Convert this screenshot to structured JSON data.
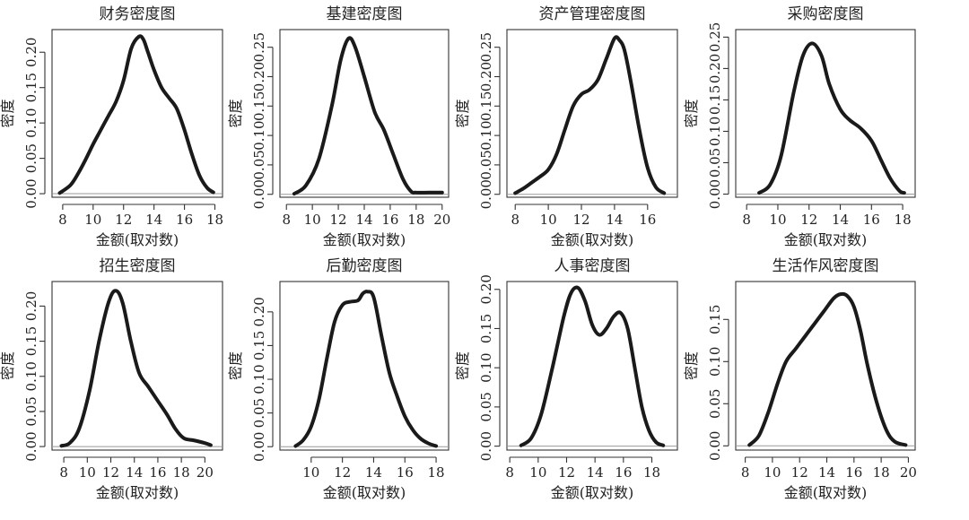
{
  "chart_data": [
    {
      "type": "line",
      "title": "财务密度图",
      "xlabel": "金额(取对数)",
      "ylabel": "密度",
      "xlim": [
        7.3,
        18.5
      ],
      "ylim": [
        -0.005,
        0.232
      ],
      "xticks": [
        8,
        10,
        12,
        14,
        16,
        18
      ],
      "yticks": [
        0.0,
        0.05,
        0.1,
        0.15,
        0.2
      ],
      "ytick_labels": [
        "0.00",
        "0.05",
        "0.10",
        "0.15",
        "0.20"
      ],
      "series": [
        {
          "x": [
            7.8,
            8.5,
            9.0,
            9.5,
            10.0,
            10.5,
            11.0,
            11.5,
            12.0,
            12.5,
            13.0,
            13.3,
            13.6,
            14.0,
            14.5,
            15.0,
            15.5,
            16.0,
            16.5,
            17.0,
            17.5,
            17.9
          ],
          "y": [
            0.001,
            0.012,
            0.028,
            0.048,
            0.07,
            0.09,
            0.11,
            0.13,
            0.16,
            0.205,
            0.222,
            0.218,
            0.2,
            0.175,
            0.15,
            0.135,
            0.12,
            0.09,
            0.055,
            0.025,
            0.008,
            0.002
          ]
        }
      ]
    },
    {
      "type": "line",
      "title": "基建密度图",
      "xlabel": "金额(取对数)",
      "ylabel": "密度",
      "xlim": [
        7.5,
        20.5
      ],
      "ylim": [
        -0.005,
        0.28
      ],
      "xticks": [
        8,
        10,
        12,
        14,
        16,
        18,
        20
      ],
      "yticks": [
        0.0,
        0.05,
        0.1,
        0.15,
        0.2,
        0.25
      ],
      "ytick_labels": [
        "0.00",
        "0.05",
        "0.10",
        "0.15",
        "0.20",
        "0.25"
      ],
      "series": [
        {
          "x": [
            8.6,
            9.5,
            10.5,
            11.5,
            12.2,
            12.8,
            13.3,
            14.0,
            14.8,
            15.5,
            16.2,
            17.0,
            17.6,
            18.0,
            19.0,
            20.0
          ],
          "y": [
            0.001,
            0.015,
            0.06,
            0.15,
            0.23,
            0.265,
            0.25,
            0.2,
            0.14,
            0.11,
            0.07,
            0.025,
            0.005,
            0.003,
            0.003,
            0.003
          ]
        }
      ]
    },
    {
      "type": "line",
      "title": "资产管理密度图",
      "xlabel": "金额(取对数)",
      "ylabel": "密度",
      "xlim": [
        7.5,
        17.8
      ],
      "ylim": [
        -0.005,
        0.28
      ],
      "xticks": [
        8,
        10,
        12,
        14,
        16
      ],
      "yticks": [
        0.0,
        0.05,
        0.1,
        0.15,
        0.2,
        0.25
      ],
      "ytick_labels": [
        "0.00",
        "0.05",
        "0.10",
        "0.15",
        "0.20",
        "0.25"
      ],
      "series": [
        {
          "x": [
            8.0,
            8.5,
            9.0,
            9.5,
            10.0,
            10.5,
            11.0,
            11.5,
            12.0,
            12.5,
            13.0,
            13.5,
            14.0,
            14.3,
            14.6,
            15.0,
            15.5,
            16.0,
            16.5,
            17.0
          ],
          "y": [
            0.002,
            0.01,
            0.02,
            0.03,
            0.042,
            0.068,
            0.11,
            0.15,
            0.17,
            0.178,
            0.195,
            0.23,
            0.265,
            0.262,
            0.245,
            0.19,
            0.11,
            0.045,
            0.012,
            0.002
          ]
        }
      ]
    },
    {
      "type": "line",
      "title": "采购密度图",
      "xlabel": "金额(取对数)",
      "ylabel": "密度",
      "xlim": [
        7.3,
        18.8
      ],
      "ylim": [
        -0.005,
        0.262
      ],
      "xticks": [
        8,
        10,
        12,
        14,
        16,
        18
      ],
      "yticks": [
        0.0,
        0.05,
        0.1,
        0.15,
        0.2,
        0.25
      ],
      "ytick_labels": [
        "0.00",
        "0.05",
        "0.10",
        "0.15",
        "0.20",
        "0.25"
      ],
      "series": [
        {
          "x": [
            8.8,
            9.5,
            10.2,
            11.0,
            11.6,
            12.2,
            12.8,
            13.3,
            14.0,
            14.6,
            15.3,
            16.0,
            16.6,
            17.2,
            17.8,
            18.1
          ],
          "y": [
            0.002,
            0.015,
            0.06,
            0.16,
            0.22,
            0.24,
            0.22,
            0.175,
            0.135,
            0.118,
            0.105,
            0.085,
            0.055,
            0.025,
            0.005,
            0.002
          ]
        }
      ]
    },
    {
      "type": "line",
      "title": "招生密度图",
      "xlabel": "金额(取对数)",
      "ylabel": "密度",
      "xlim": [
        7.0,
        21.5
      ],
      "ylim": [
        -0.005,
        0.235
      ],
      "xticks": [
        8,
        10,
        12,
        14,
        16,
        18,
        20
      ],
      "yticks": [
        0.0,
        0.05,
        0.1,
        0.15,
        0.2
      ],
      "ytick_labels": [
        "0.00",
        "0.05",
        "0.10",
        "0.15",
        "0.20"
      ],
      "series": [
        {
          "x": [
            7.8,
            8.5,
            9.3,
            10.2,
            11.0,
            11.8,
            12.4,
            13.0,
            13.7,
            14.4,
            15.2,
            16.0,
            16.8,
            17.5,
            18.2,
            19.0,
            20.0,
            20.5
          ],
          "y": [
            0.001,
            0.005,
            0.025,
            0.08,
            0.15,
            0.205,
            0.222,
            0.205,
            0.15,
            0.105,
            0.085,
            0.065,
            0.045,
            0.025,
            0.012,
            0.009,
            0.005,
            0.002
          ]
        }
      ]
    },
    {
      "type": "line",
      "title": "后勤密度图",
      "xlabel": "金额(取对数)",
      "ylabel": "密度",
      "xlim": [
        8.0,
        18.8
      ],
      "ylim": [
        -0.005,
        0.245
      ],
      "xticks": [
        10,
        12,
        14,
        16,
        18
      ],
      "yticks": [
        0.0,
        0.05,
        0.1,
        0.15,
        0.2
      ],
      "ytick_labels": [
        "0.00",
        "0.05",
        "0.10",
        "0.15",
        "0.20"
      ],
      "series": [
        {
          "x": [
            9.0,
            9.5,
            10.0,
            10.5,
            11.0,
            11.5,
            12.0,
            12.5,
            13.0,
            13.3,
            13.6,
            14.0,
            14.5,
            15.0,
            15.5,
            16.0,
            16.5,
            17.0,
            17.5,
            18.0
          ],
          "y": [
            0.001,
            0.01,
            0.03,
            0.07,
            0.13,
            0.185,
            0.21,
            0.215,
            0.217,
            0.227,
            0.23,
            0.222,
            0.165,
            0.11,
            0.075,
            0.045,
            0.025,
            0.012,
            0.005,
            0.001
          ]
        }
      ]
    },
    {
      "type": "line",
      "title": "人事密度图",
      "xlabel": "金额(取对数)",
      "ylabel": "密度",
      "xlim": [
        7.8,
        19.8
      ],
      "ylim": [
        -0.005,
        0.21
      ],
      "xticks": [
        8,
        10,
        12,
        14,
        16,
        18
      ],
      "yticks": [
        0.0,
        0.05,
        0.1,
        0.15,
        0.2
      ],
      "ytick_labels": [
        "0.00",
        "0.05",
        "0.10",
        "0.15",
        "0.20"
      ],
      "series": [
        {
          "x": [
            8.8,
            9.5,
            10.2,
            11.0,
            11.8,
            12.3,
            12.8,
            13.3,
            13.8,
            14.3,
            14.8,
            15.3,
            15.8,
            16.3,
            16.8,
            17.3,
            17.8,
            18.3,
            18.8
          ],
          "y": [
            0.001,
            0.01,
            0.04,
            0.1,
            0.165,
            0.195,
            0.202,
            0.185,
            0.155,
            0.142,
            0.15,
            0.165,
            0.17,
            0.15,
            0.1,
            0.05,
            0.02,
            0.005,
            0.001
          ]
        }
      ]
    },
    {
      "type": "line",
      "title": "生活作风密度图",
      "xlabel": "金额(取对数)",
      "ylabel": "密度",
      "xlim": [
        7.3,
        20.5
      ],
      "ylim": [
        -0.005,
        0.195
      ],
      "xticks": [
        8,
        10,
        12,
        14,
        16,
        18,
        20
      ],
      "yticks": [
        0.0,
        0.05,
        0.1,
        0.15
      ],
      "ytick_labels": [
        "0.00",
        "0.05",
        "0.10",
        "0.15"
      ],
      "series": [
        {
          "x": [
            8.3,
            9.0,
            9.7,
            10.4,
            11.0,
            11.7,
            12.4,
            13.1,
            13.8,
            14.5,
            15.0,
            15.5,
            16.0,
            16.5,
            17.0,
            17.7,
            18.4,
            19.0,
            19.8
          ],
          "y": [
            0.001,
            0.012,
            0.04,
            0.075,
            0.1,
            0.115,
            0.13,
            0.145,
            0.16,
            0.175,
            0.18,
            0.178,
            0.165,
            0.135,
            0.095,
            0.05,
            0.018,
            0.005,
            0.001
          ]
        }
      ]
    }
  ]
}
